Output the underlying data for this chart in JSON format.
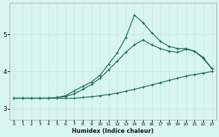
{
  "xlabel": "Humidex (Indice chaleur)",
  "background_color": "#d8f5f0",
  "line_color": "#1a6b5a",
  "grid_color": "#c8e8e0",
  "xlim": [
    -0.5,
    23.5
  ],
  "ylim": [
    2.7,
    5.85
  ],
  "yticks": [
    3,
    4,
    5
  ],
  "xticks": [
    0,
    1,
    2,
    3,
    4,
    5,
    6,
    7,
    8,
    9,
    10,
    11,
    12,
    13,
    14,
    15,
    16,
    17,
    18,
    19,
    20,
    21,
    22,
    23
  ],
  "series1_x": [
    0,
    1,
    2,
    3,
    4,
    5,
    6,
    7,
    8,
    9,
    10,
    11,
    12,
    13,
    14,
    15,
    16,
    17,
    18,
    19,
    20,
    21,
    22,
    23
  ],
  "series1_y": [
    3.28,
    3.28,
    3.28,
    3.28,
    3.28,
    3.28,
    3.28,
    3.28,
    3.3,
    3.32,
    3.35,
    3.38,
    3.42,
    3.47,
    3.52,
    3.58,
    3.64,
    3.7,
    3.76,
    3.82,
    3.88,
    3.92,
    3.96,
    4.0
  ],
  "series2_x": [
    0,
    1,
    2,
    3,
    4,
    5,
    6,
    7,
    8,
    9,
    10,
    11,
    12,
    13,
    14,
    15,
    16,
    17,
    18,
    19,
    20,
    21,
    22,
    23
  ],
  "series2_y": [
    3.28,
    3.28,
    3.28,
    3.28,
    3.28,
    3.3,
    3.33,
    3.4,
    3.52,
    3.65,
    3.82,
    4.05,
    4.28,
    4.52,
    4.72,
    4.85,
    4.72,
    4.62,
    4.55,
    4.52,
    4.6,
    4.55,
    4.38,
    4.08
  ],
  "series3_x": [
    0,
    1,
    2,
    3,
    4,
    5,
    6,
    7,
    8,
    9,
    10,
    11,
    12,
    13,
    14,
    15,
    16,
    17,
    18,
    19,
    20,
    21,
    22,
    23
  ],
  "series3_y": [
    3.28,
    3.28,
    3.28,
    3.28,
    3.28,
    3.3,
    3.35,
    3.48,
    3.6,
    3.72,
    3.9,
    4.2,
    4.5,
    4.92,
    5.52,
    5.32,
    5.05,
    4.82,
    4.68,
    4.62,
    4.62,
    4.55,
    4.35,
    4.08
  ]
}
